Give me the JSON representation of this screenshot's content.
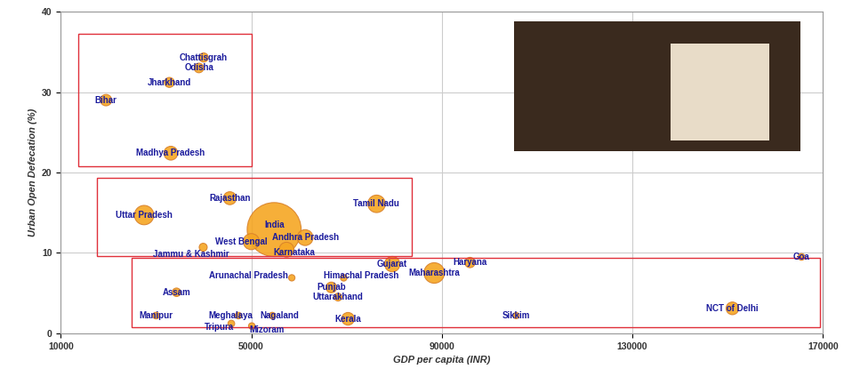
{
  "chart_data": {
    "type": "scatter",
    "xlabel": "GDP per capita (INR)",
    "ylabel": "Urban Open Defecation (%)",
    "labels": [
      "Chattisgrah",
      "Odisha",
      "Jharkhand",
      "Bihar",
      "Madhya Pradesh",
      "Rajasthan",
      "Tamil Nadu",
      "Uttar Pradesh",
      "India",
      "Andhra Pradesh",
      "West Bengal",
      "Karnataka",
      "Jammu & Kashmir",
      "Gujarat",
      "Haryana",
      "Goa",
      "Maharashtra",
      "Himachal Pradesh",
      "Arunachal Pradesh",
      "Punjab",
      "Uttarakhand",
      "Assam",
      "Manipur",
      "Meghalaya",
      "Nagaland",
      "Tripura",
      "Mizoram",
      "Kerala",
      "Sikkim",
      "NCT of Delhi"
    ],
    "x": [
      40000,
      39000,
      32800,
      19500,
      33100,
      45500,
      76300,
      27500,
      54800,
      61300,
      50000,
      57400,
      39900,
      79600,
      95900,
      165500,
      88400,
      69400,
      58500,
      66800,
      68200,
      34300,
      30000,
      47300,
      54400,
      45800,
      50100,
      70300,
      105600,
      151000
    ],
    "values": [
      34.3,
      33.0,
      31.2,
      29.0,
      22.4,
      16.8,
      16.1,
      14.7,
      12.9,
      11.9,
      11.4,
      10.4,
      10.7,
      8.6,
      8.8,
      9.5,
      7.5,
      6.9,
      6.9,
      5.7,
      4.5,
      5.1,
      2.2,
      2.2,
      2.2,
      1.2,
      0.9,
      1.8,
      2.2,
      3.1
    ],
    "sizes": [
      6,
      7,
      8,
      12,
      20,
      17,
      35,
      44,
      377,
      28,
      29,
      24,
      3.4,
      26,
      9,
      0.9,
      50,
      0.7,
      0.3,
      10,
      3,
      4.4,
      0.8,
      0.6,
      0.6,
      1,
      0.6,
      16,
      0.15,
      16
    ],
    "color": "#f5a623",
    "xlim": [
      10000,
      170000
    ],
    "xticks": [
      10000,
      50000,
      90000,
      130000,
      170000
    ],
    "ylim": [
      0,
      40
    ],
    "yticks": [
      0,
      10,
      20,
      30,
      40
    ],
    "grid": true
  }
}
